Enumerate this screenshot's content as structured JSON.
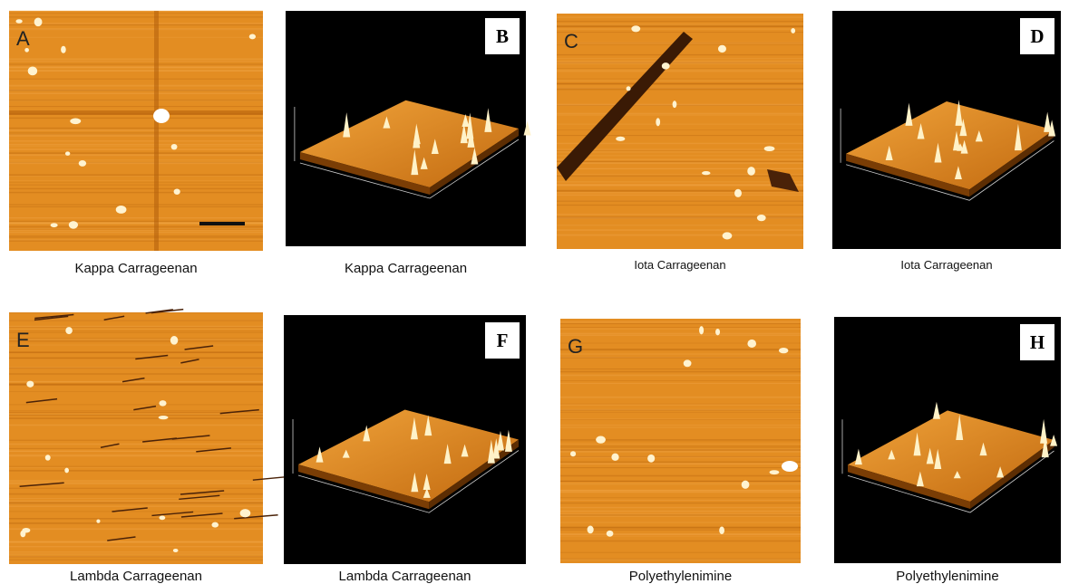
{
  "panels": [
    {
      "label": "A",
      "caption": "Kappa Carrageenan"
    },
    {
      "label": "B",
      "caption": "Kappa Carrageenan"
    },
    {
      "label": "C",
      "caption": "Iota Carrageenan"
    },
    {
      "label": "D",
      "caption": "Iota Carrageenan"
    },
    {
      "label": "E",
      "caption": "Lambda Carrageenan"
    },
    {
      "label": "F",
      "caption": "Lambda Carrageenan"
    },
    {
      "label": "G",
      "caption": "Polyethylenimine"
    },
    {
      "label": "H",
      "caption": "Polyethylenimine"
    }
  ]
}
